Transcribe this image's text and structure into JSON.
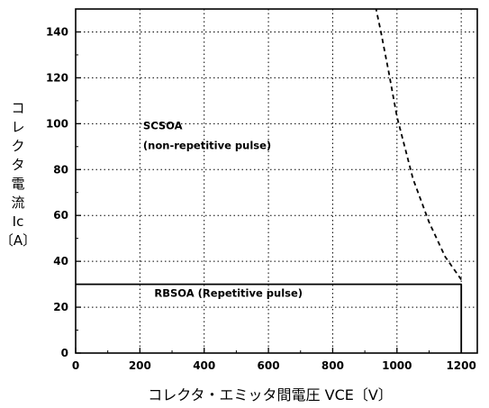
{
  "chart_data": {
    "type": "line",
    "title": "",
    "xlabel": "コレクタ・エミッタ間電圧 VCE〔V〕",
    "ylabel_lines": [
      "コ",
      "レ",
      "ク",
      "タ",
      "電",
      "流",
      "Ic",
      "〔A〕"
    ],
    "xlim": [
      0,
      1250
    ],
    "ylim": [
      0,
      150
    ],
    "xticks": [
      0,
      200,
      400,
      600,
      800,
      1000,
      1200
    ],
    "yticks": [
      0,
      20,
      40,
      60,
      80,
      100,
      120,
      140
    ],
    "grid": true,
    "series": [
      {
        "style": "solid",
        "x": [
          0,
          1200,
          1200
        ],
        "y": [
          30,
          30,
          0
        ]
      },
      {
        "style": "dashed",
        "x": [
          1200,
          1150,
          1100,
          1050,
          1000,
          975,
          950,
          935
        ],
        "y": [
          32,
          42,
          57,
          76,
          103,
          122,
          140,
          150
        ]
      }
    ],
    "annotations": [
      {
        "text": "SCSOA",
        "x": 210,
        "y": 97.5
      },
      {
        "text": "(non-repetitive pulse)",
        "x": 210,
        "y": 89
      },
      {
        "text": "RBSOA (Repetitive pulse)",
        "x": 245,
        "y": 24.5
      }
    ]
  }
}
